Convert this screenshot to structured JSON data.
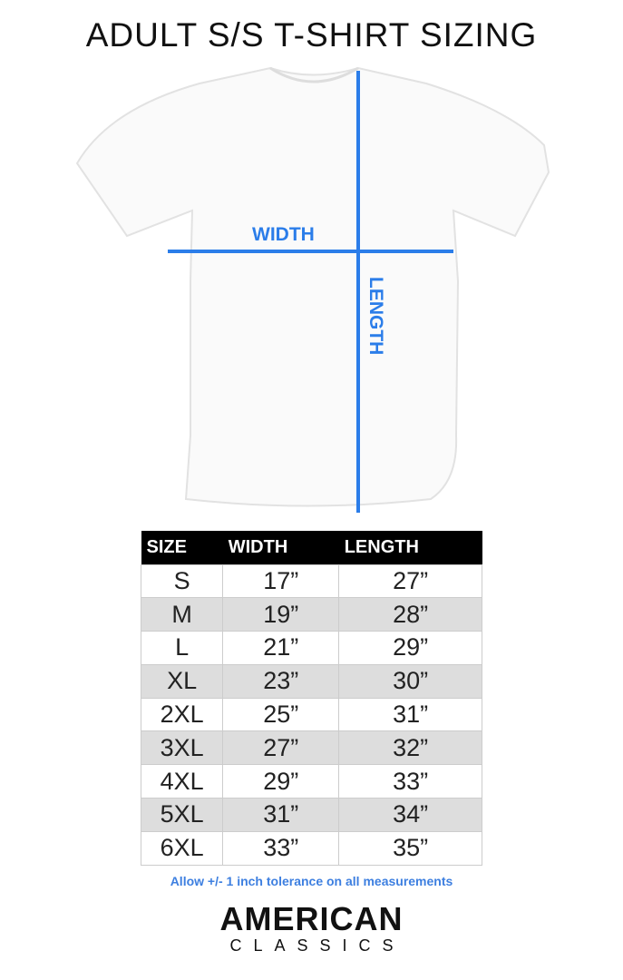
{
  "title": "ADULT S/S T-SHIRT SIZING",
  "diagram": {
    "width_label": "WIDTH",
    "length_label": "LENGTH",
    "line_color": "#2b7de9"
  },
  "table": {
    "headers": [
      "SIZE",
      "WIDTH",
      "LENGTH"
    ],
    "rows": [
      [
        "S",
        "17”",
        "27”"
      ],
      [
        "M",
        "19”",
        "28”"
      ],
      [
        "L",
        "21”",
        "29”"
      ],
      [
        "XL",
        "23”",
        "30”"
      ],
      [
        "2XL",
        "25”",
        "31”"
      ],
      [
        "3XL",
        "27”",
        "32”"
      ],
      [
        "4XL",
        "29”",
        "33”"
      ],
      [
        "5XL",
        "31”",
        "34”"
      ],
      [
        "6XL",
        "33”",
        "35”"
      ]
    ]
  },
  "note": "Allow +/- 1 inch tolerance on all measurements",
  "logo": {
    "main": "AMERICAN",
    "sub": "CLASSICS"
  }
}
